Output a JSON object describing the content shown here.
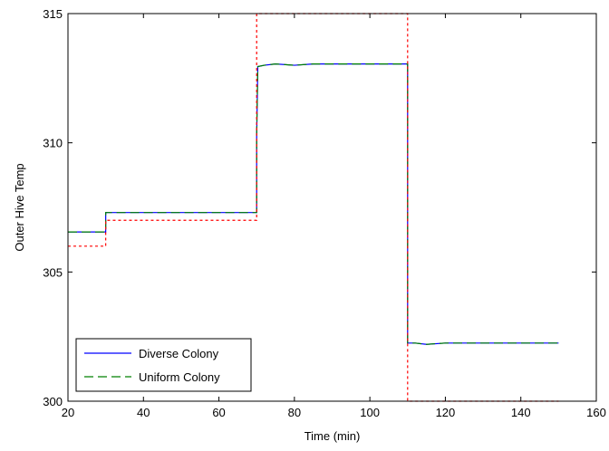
{
  "chart_data": {
    "type": "line",
    "xlabel": "Time (min)",
    "ylabel": "Outer Hive Temp",
    "xlim": [
      20,
      160
    ],
    "ylim": [
      300,
      315
    ],
    "xticks": [
      20,
      40,
      60,
      80,
      100,
      120,
      140,
      160
    ],
    "yticks": [
      300,
      305,
      310,
      315
    ],
    "grid": false,
    "legend_position": "bottom-left",
    "series": [
      {
        "name": "Diverse Colony",
        "color": "#0000ff",
        "dash": "solid",
        "x": [
          20,
          30,
          30,
          70,
          70,
          70.3,
          72,
          75,
          80,
          85,
          110,
          110,
          112,
          115,
          120,
          150
        ],
        "y": [
          306.55,
          306.55,
          307.3,
          307.3,
          310.2,
          312.95,
          313.0,
          313.05,
          313.0,
          313.05,
          313.05,
          302.25,
          302.25,
          302.2,
          302.25,
          302.25
        ]
      },
      {
        "name": "Uniform Colony",
        "color": "#008000",
        "dash": "dashed",
        "x": [
          20,
          30,
          30,
          70,
          70,
          70.3,
          72,
          75,
          80,
          85,
          110,
          110,
          112,
          115,
          120,
          150
        ],
        "y": [
          306.55,
          306.55,
          307.3,
          307.3,
          310.3,
          312.95,
          313.0,
          313.05,
          313.0,
          313.05,
          313.05,
          302.25,
          302.25,
          302.2,
          302.25,
          302.25
        ]
      },
      {
        "color": "#ff0000",
        "dash": "dotted",
        "x": [
          20,
          30,
          30,
          70,
          70,
          110,
          110,
          150
        ],
        "y": [
          306.0,
          306.0,
          307.0,
          307.0,
          315.0,
          315.0,
          300.0,
          300.0
        ]
      }
    ]
  }
}
